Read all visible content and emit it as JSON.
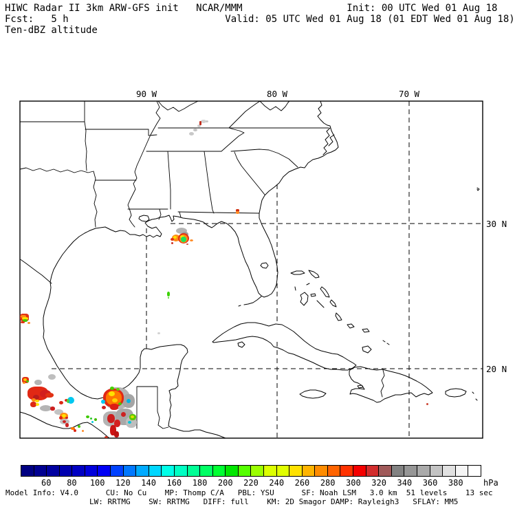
{
  "header": {
    "line1": "HIWC Radar II 3km ARW-GFS init   NCAR/MMM                  Init: 00 UTC Wed 01 Aug 18",
    "line2": "Fcst:   5 h                           Valid: 05 UTC Wed 01 Aug 18 (01 EDT Wed 01 Aug 18)",
    "line3": "Ten-dBZ altitude"
  },
  "map": {
    "lon_labels": [
      "90 W",
      "80 W",
      "70 W"
    ],
    "lat_labels": [
      "30 N",
      "20 N"
    ]
  },
  "colorbar": {
    "unit": "hPa",
    "tick_labels": [
      "60",
      "80",
      "100",
      "120",
      "140",
      "160",
      "180",
      "200",
      "220",
      "240",
      "260",
      "280",
      "300",
      "320",
      "340",
      "360",
      "380"
    ],
    "cell_colors": [
      "#000082",
      "#000091",
      "#0000a0",
      "#0000af",
      "#0000c3",
      "#0000dc",
      "#0000f5",
      "#0041ff",
      "#0078ff",
      "#00aaff",
      "#00d7ff",
      "#00ffe8",
      "#00ffc3",
      "#00ff96",
      "#00ff64",
      "#00ff32",
      "#00e600",
      "#55ff00",
      "#9bff00",
      "#dcff00",
      "#e1ff00",
      "#ffe100",
      "#ffb400",
      "#ff8c00",
      "#ff6400",
      "#ff3200",
      "#f50000",
      "#d22d2d",
      "#a05a5a",
      "#828282",
      "#969696",
      "#aaaaaa",
      "#c3c3c3",
      "#e1e1e1",
      "#f5f5f5",
      "#ffffff"
    ]
  },
  "footer": {
    "line1": "Model Info: V4.0      CU: No Cu    MP: Thomp C/A   PBL: YSU      SF: Noah LSM   3.0 km  51 levels    13 sec",
    "line2": "LW: RRTMG    SW: RRTMG   DIFF: full    KM: 2D Smagor DAMP: Rayleigh3   SFLAY: MM5"
  },
  "radar": {
    "echo_format": [
      "x",
      "y",
      "w",
      "h",
      "color",
      "border_radius_pct"
    ],
    "echoes": [
      [
        275,
        192,
        7,
        5,
        "#c8c8c8",
        50
      ],
      [
        281,
        187,
        6,
        4,
        "#c3c3c3",
        50
      ],
      [
        287,
        181,
        5,
        4,
        "#cccccc",
        50
      ],
      [
        292,
        174,
        8,
        5,
        "#d2d2d2",
        50
      ],
      [
        290,
        176,
        3,
        6,
        "#c23020",
        30
      ],
      [
        299,
        175,
        4,
        3,
        "#c8c8c8",
        50
      ],
      [
        343,
        304,
        5,
        4,
        "#d03010",
        40
      ],
      [
        343,
        307,
        5,
        4,
        "#ff8c28",
        40
      ],
      [
        256,
        331,
        16,
        9,
        "#b4b4b4",
        50
      ],
      [
        264,
        337,
        10,
        7,
        "#9b9b9b",
        50
      ],
      [
        250,
        341,
        12,
        10,
        "#ff8c14",
        50
      ],
      [
        252,
        343,
        5,
        4,
        "#ffe100",
        50
      ],
      [
        248,
        346,
        5,
        4,
        "#e13214",
        50
      ],
      [
        259,
        339,
        16,
        15,
        "#e13214",
        50
      ],
      [
        261,
        341,
        12,
        12,
        "#ff8c14",
        50
      ],
      [
        262,
        342,
        6,
        4,
        "#ffe100",
        50
      ],
      [
        263,
        344,
        8,
        8,
        "#1ee15a",
        50
      ],
      [
        249,
        352,
        3,
        3,
        "#d03020",
        50
      ],
      [
        276,
        348,
        5,
        3,
        "#ff8c28",
        50
      ],
      [
        271,
        354,
        3,
        2,
        "#cc5544",
        50
      ],
      [
        243,
        424,
        4,
        7,
        "#3cd200",
        40
      ],
      [
        244,
        432,
        2,
        2,
        "#3cd200",
        50
      ],
      [
        229,
        483,
        4,
        3,
        "#d2d2d2",
        50
      ],
      [
        29,
        456,
        13,
        11,
        "#e13214",
        30
      ],
      [
        30,
        458,
        8,
        4,
        "#ff8c14",
        40
      ],
      [
        32,
        461,
        9,
        4,
        "#ffe100",
        40
      ],
      [
        33,
        464,
        7,
        4,
        "#46c800",
        40
      ],
      [
        30,
        467,
        6,
        3,
        "#e13214",
        40
      ],
      [
        40,
        468,
        4,
        3,
        "#ff8c28",
        50
      ],
      [
        32,
        548,
        10,
        9,
        "#e13214",
        35
      ],
      [
        34,
        550,
        5,
        4,
        "#ffc800",
        50
      ],
      [
        38,
        553,
        4,
        3,
        "#46c800",
        50
      ],
      [
        33,
        555,
        4,
        3,
        "#ff8c14",
        50
      ],
      [
        50,
        552,
        11,
        8,
        "#b4b4b4",
        50
      ],
      [
        70,
        544,
        11,
        8,
        "#bebebe",
        50
      ],
      [
        40,
        562,
        30,
        20,
        "#e12814",
        40
      ],
      [
        44,
        565,
        20,
        13,
        "#e12814",
        50
      ],
      [
        58,
        567,
        16,
        11,
        "#d21e1e",
        45
      ],
      [
        66,
        571,
        12,
        7,
        "#e13214",
        45
      ],
      [
        48,
        574,
        9,
        7,
        "#b91c1c",
        50
      ],
      [
        46,
        579,
        6,
        5,
        "#ff8c14",
        50
      ],
      [
        51,
        581,
        6,
        4,
        "#ffdc00",
        50
      ],
      [
        44,
        584,
        9,
        8,
        "#dc2814",
        45
      ],
      [
        52,
        586,
        5,
        4,
        "#ffe100",
        50
      ],
      [
        58,
        589,
        17,
        9,
        "#b4b4b4",
        50
      ],
      [
        73,
        591,
        7,
        6,
        "#cc2020",
        45
      ],
      [
        79,
        595,
        13,
        8,
        "#c3c3c3",
        50
      ],
      [
        86,
        583,
        6,
        5,
        "#dc2814",
        50
      ],
      [
        94,
        580,
        5,
        4,
        "#dc2814",
        50
      ],
      [
        98,
        577,
        10,
        10,
        "#00c8f0",
        50
      ],
      [
        97,
        580,
        4,
        6,
        "#46d246",
        50
      ],
      [
        87,
        600,
        12,
        10,
        "#ff8c14",
        45
      ],
      [
        90,
        602,
        6,
        5,
        "#ffe100",
        50
      ],
      [
        86,
        605,
        5,
        5,
        "#dc2814",
        50
      ],
      [
        95,
        606,
        4,
        3,
        "#cc2020",
        50
      ],
      [
        87,
        609,
        14,
        8,
        "#c0c0c0",
        50
      ],
      [
        91,
        611,
        5,
        4,
        "#cc2020",
        50
      ],
      [
        95,
        615,
        5,
        6,
        "#cc2222",
        45
      ],
      [
        103,
        621,
        6,
        4,
        "#ff7800",
        45
      ],
      [
        107,
        624,
        4,
        4,
        "#dc2814",
        50
      ],
      [
        113,
        618,
        4,
        4,
        "#46d200",
        50
      ],
      [
        125,
        604,
        5,
        4,
        "#3cc800",
        50
      ],
      [
        131,
        607,
        3,
        3,
        "#28c828",
        50
      ],
      [
        119,
        625,
        3,
        3,
        "#ff8c28",
        50
      ],
      [
        151,
        563,
        38,
        32,
        "#b4b4b4",
        45
      ],
      [
        178,
        573,
        18,
        20,
        "#a5a5a5",
        45
      ],
      [
        150,
        565,
        30,
        27,
        "#e12814",
        45
      ],
      [
        154,
        568,
        23,
        21,
        "#ff7800",
        45
      ],
      [
        158,
        569,
        9,
        7,
        "#ffe100",
        50
      ],
      [
        163,
        579,
        8,
        6,
        "#ffd200",
        50
      ],
      [
        160,
        562,
        6,
        5,
        "#46d200",
        50
      ],
      [
        169,
        564,
        5,
        4,
        "#64d200",
        50
      ],
      [
        147,
        581,
        6,
        6,
        "#00c8f0",
        50
      ],
      [
        184,
        580,
        6,
        6,
        "#00b4e1",
        50
      ],
      [
        172,
        585,
        5,
        4,
        "#46c800",
        50
      ],
      [
        160,
        587,
        12,
        9,
        "#dc1e14",
        40
      ],
      [
        148,
        590,
        6,
        5,
        "#cc2020",
        50
      ],
      [
        150,
        598,
        26,
        22,
        "#b4b4b4",
        40
      ],
      [
        168,
        594,
        26,
        24,
        "#a8a8a8",
        40
      ],
      [
        183,
        606,
        16,
        16,
        "#bebebe",
        45
      ],
      [
        156,
        602,
        11,
        13,
        "#cc1e1e",
        45
      ],
      [
        166,
        610,
        9,
        11,
        "#d42020",
        45
      ],
      [
        176,
        599,
        7,
        7,
        "#cc2222",
        50
      ],
      [
        160,
        618,
        9,
        15,
        "#cc1414",
        40
      ],
      [
        166,
        627,
        7,
        9,
        "#bb1414",
        40
      ],
      [
        188,
        602,
        10,
        9,
        "#5ac800",
        45
      ],
      [
        190,
        604,
        5,
        4,
        "#e1e100",
        50
      ],
      [
        186,
        612,
        5,
        4,
        "#00c8dc",
        50
      ],
      [
        152,
        634,
        5,
        3,
        "#cc3322",
        50
      ],
      [
        137,
        608,
        4,
        4,
        "#44bb00",
        50
      ],
      [
        133,
        612,
        3,
        3,
        "#00ccdd",
        50
      ],
      [
        620,
        586,
        3,
        3,
        "#cc4433",
        50
      ]
    ]
  }
}
